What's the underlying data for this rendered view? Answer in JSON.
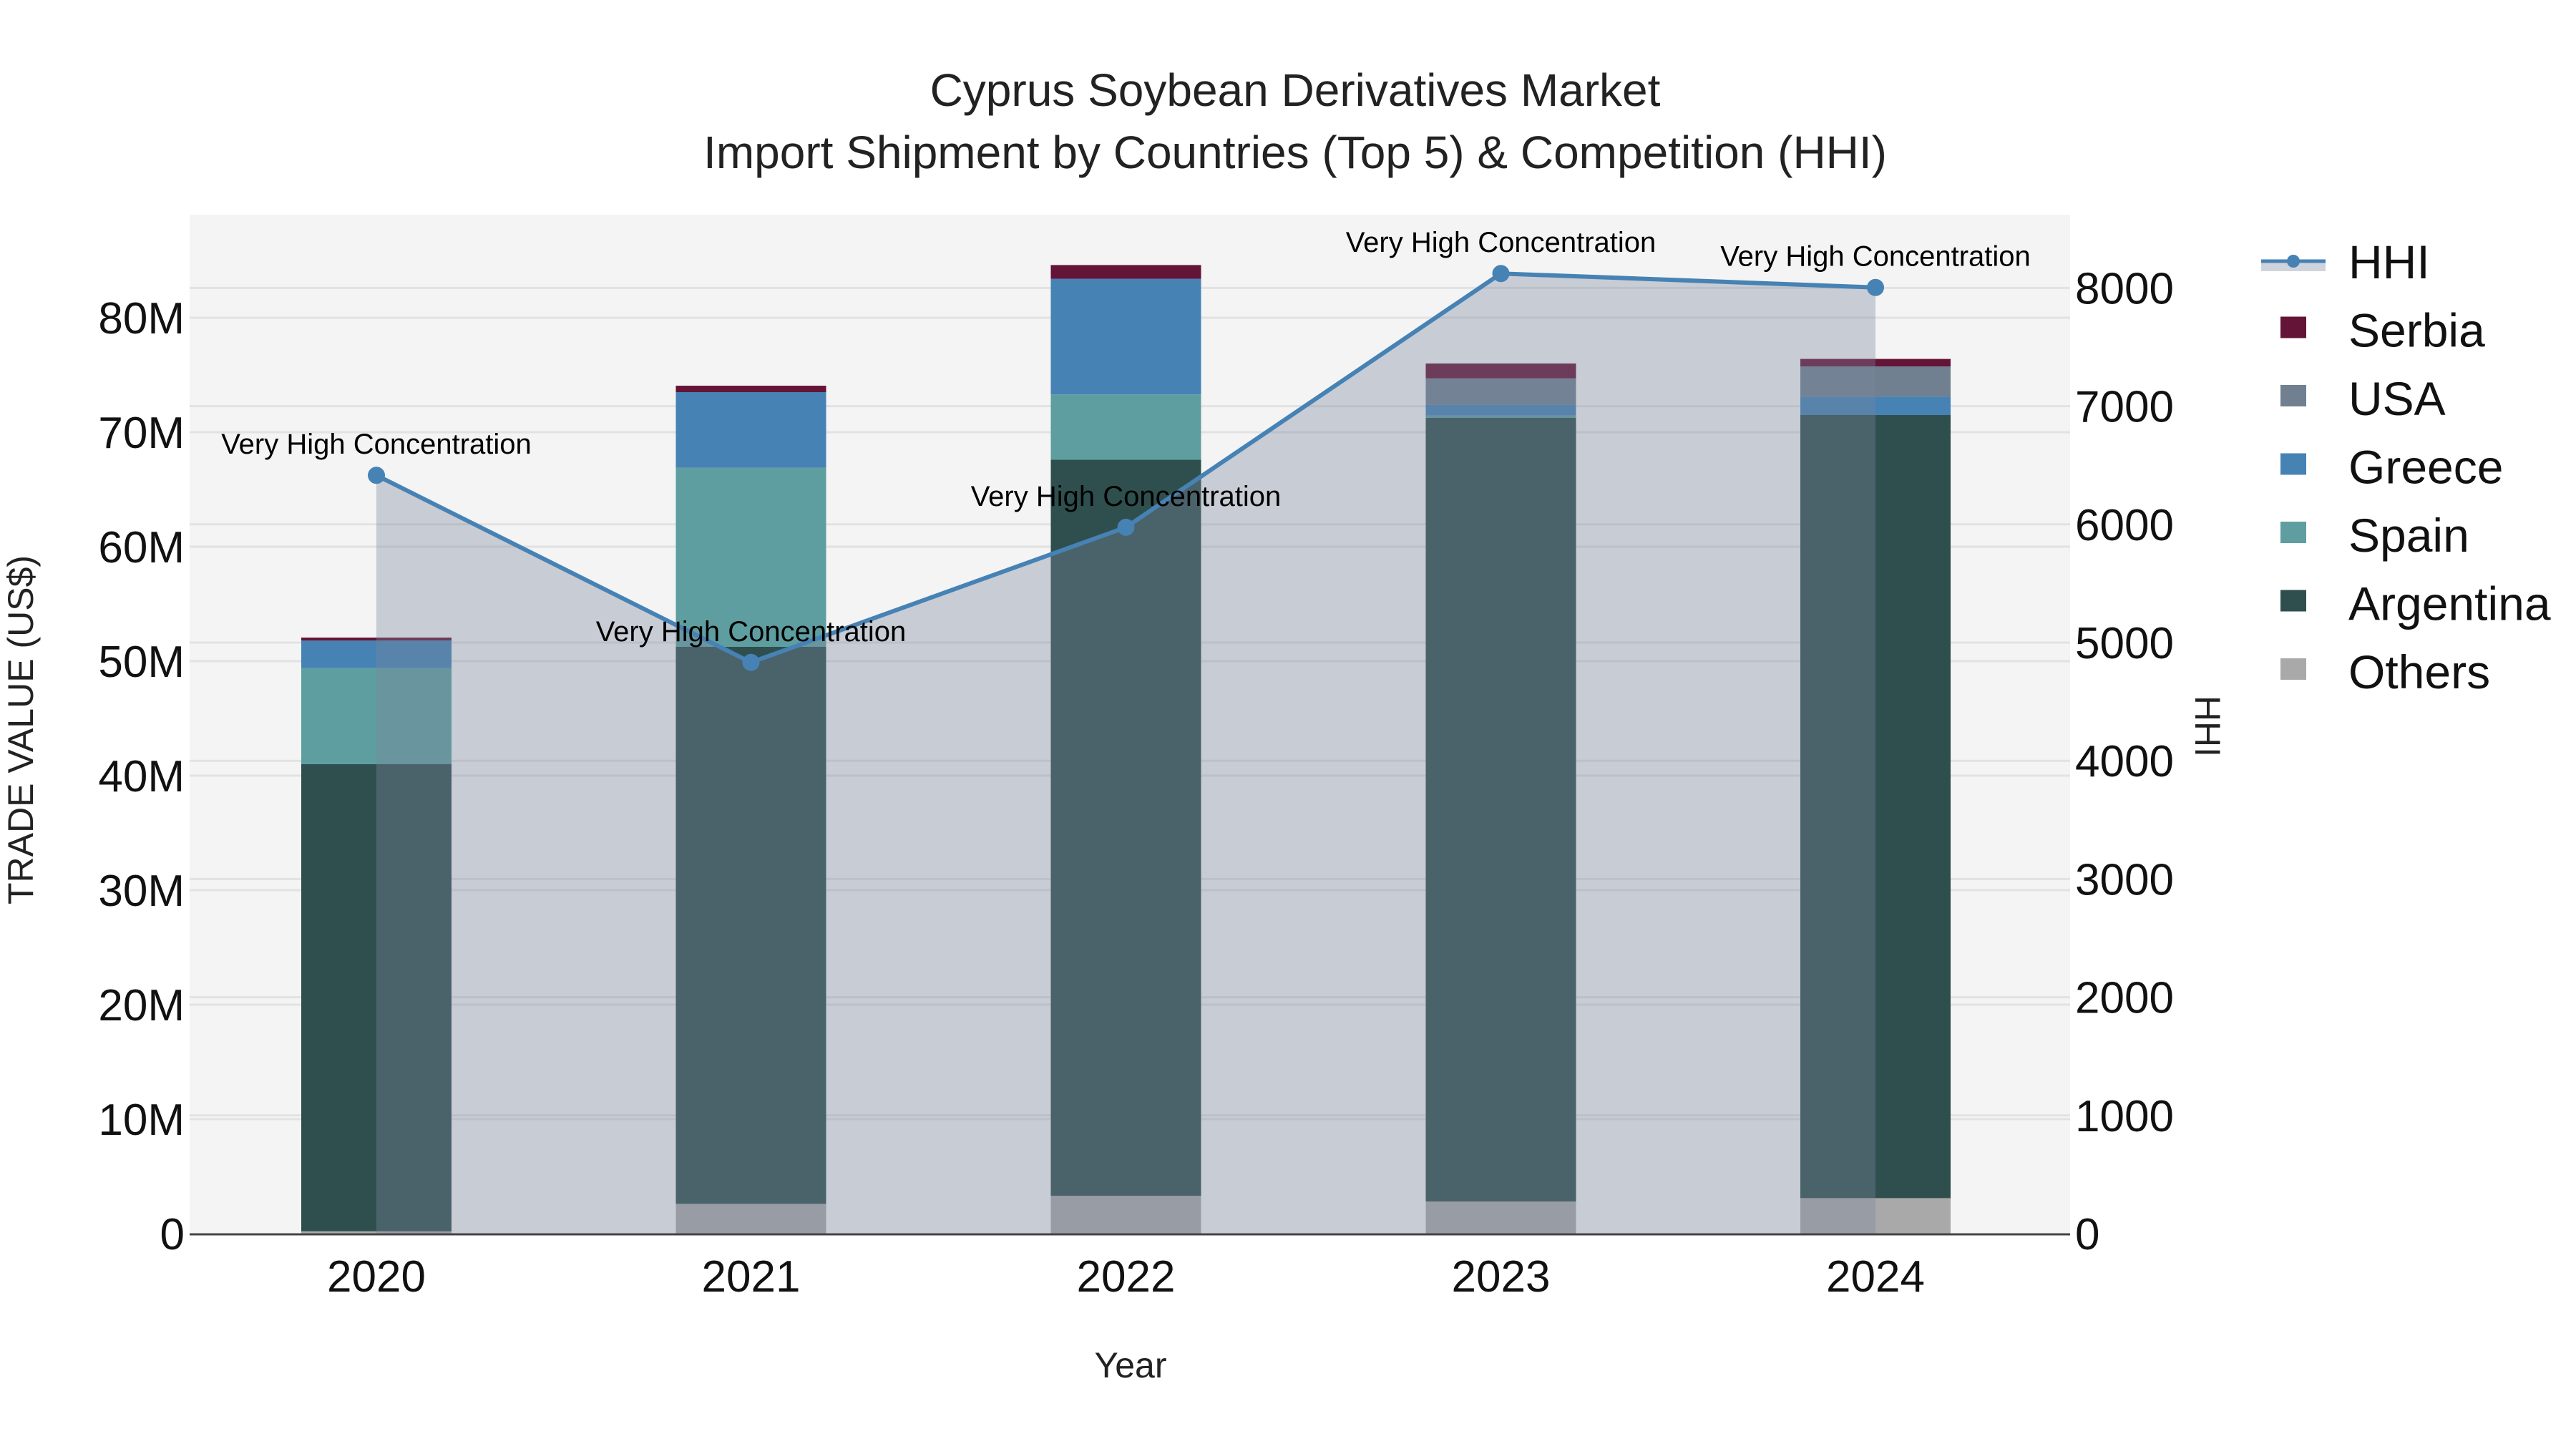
{
  "title": {
    "line1": "Cyprus Soybean Derivatives Market",
    "line2": "Import Shipment by Countries (Top 5) & Competition (HHI)"
  },
  "axes": {
    "x_title": "Year",
    "y_left_title": "TRADE VALUE (US$)",
    "y_right_title": "HHI",
    "y_left_ticks": [
      "0",
      "10M",
      "20M",
      "30M",
      "40M",
      "50M",
      "60M",
      "70M",
      "80M"
    ],
    "y_right_ticks": [
      "0",
      "1000",
      "2000",
      "3000",
      "4000",
      "5000",
      "6000",
      "7000",
      "8000"
    ]
  },
  "colors": {
    "Serbia": "#641436",
    "USA": "#708090",
    "Greece": "#4682b4",
    "Spain": "#5f9ea0",
    "Argentina": "#2f4f4f",
    "Others": "#a9a9a9",
    "HHI_line": "#4682b4",
    "HHI_fill": "rgba(122,132,155,0.36)",
    "plot_bg": "#f4f4f4",
    "grid": "#e2e2e2"
  },
  "legend": [
    {
      "label": "HHI",
      "type": "line"
    },
    {
      "label": "Serbia",
      "type": "box"
    },
    {
      "label": "USA",
      "type": "box"
    },
    {
      "label": "Greece",
      "type": "box"
    },
    {
      "label": "Spain",
      "type": "box"
    },
    {
      "label": "Argentina",
      "type": "box"
    },
    {
      "label": "Others",
      "type": "box"
    }
  ],
  "chart_data": {
    "type": "bar",
    "stacked": true,
    "title": "Cyprus Soybean Derivatives Market — Import Shipment by Countries (Top 5) & Competition (HHI)",
    "xlabel": "Year",
    "ylabel": "TRADE VALUE (US$)",
    "y2label": "HHI",
    "ylim": [
      0,
      88000000
    ],
    "y2lim": [
      0,
      8700
    ],
    "grid": true,
    "legend_position": "right",
    "categories": [
      "2020",
      "2021",
      "2022",
      "2023",
      "2024"
    ],
    "series": [
      {
        "name": "Others",
        "values": [
          200000,
          2600000,
          3300000,
          2800000,
          3100000
        ]
      },
      {
        "name": "Argentina",
        "values": [
          40800000,
          48650000,
          64300000,
          68450000,
          68400000
        ]
      },
      {
        "name": "Spain",
        "values": [
          8400000,
          15650000,
          5700000,
          200000,
          0
        ]
      },
      {
        "name": "Greece",
        "values": [
          2400000,
          6600000,
          10100000,
          950000,
          1600000
        ]
      },
      {
        "name": "USA",
        "values": [
          0,
          0,
          0,
          2300000,
          2650000
        ]
      },
      {
        "name": "Serbia",
        "values": [
          260000,
          560000,
          1200000,
          1300000,
          650000
        ]
      }
    ],
    "line_series": {
      "name": "HHI",
      "axis": "right",
      "type": "line+area",
      "values": [
        6415,
        4832,
        5975,
        8122,
        8004
      ],
      "annotations": [
        "Very High Concentration",
        "Very High Concentration",
        "Very High Concentration",
        "Very High Concentration",
        "Very High Concentration"
      ]
    }
  }
}
